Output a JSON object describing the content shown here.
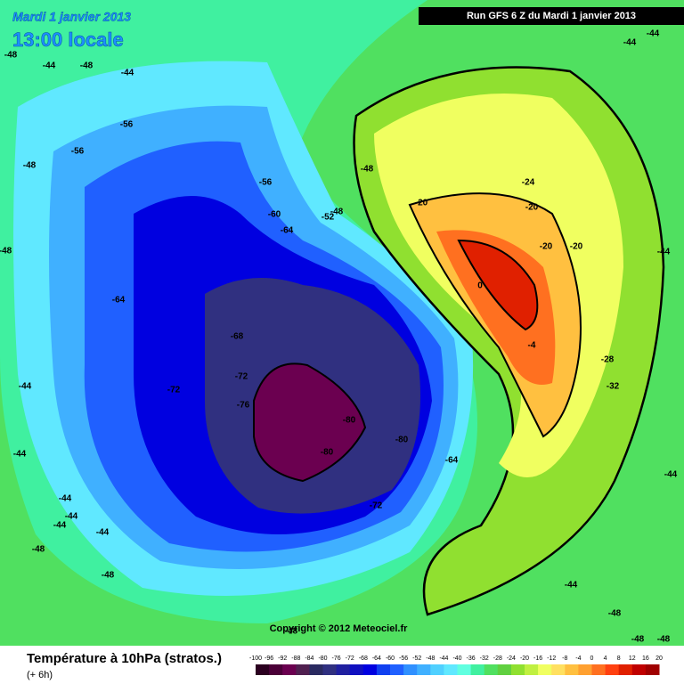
{
  "header": {
    "date": "Mardi 1 janvier 2013",
    "time": "13:00 locale",
    "run": "Run GFS 6 Z du Mardi 1 janvier 2013"
  },
  "copyright": "Copyright © 2012 Meteociel.fr",
  "caption": {
    "title": "Température à 10hPa (stratos.)",
    "subtitle": "(+ 6h)"
  },
  "contour_labels": [
    -48,
    -44,
    -48,
    -44,
    -44,
    -44,
    -48,
    -56,
    -56,
    -56,
    -60,
    -64,
    -52,
    -48,
    -48,
    -20,
    -24,
    -20,
    -20,
    -20,
    -64,
    -68,
    -72,
    -72,
    -76,
    -80,
    -80,
    -80,
    -64,
    -72,
    0,
    -4,
    -28,
    -32,
    -48,
    -44,
    -44,
    -44,
    -44,
    -44,
    -44,
    -48,
    -48,
    -48,
    -44,
    -48,
    -48,
    -48,
    -44,
    -44
  ],
  "colorbar": {
    "ticks": [
      -100,
      -96,
      -92,
      -88,
      -84,
      -80,
      -76,
      -72,
      -68,
      -64,
      -60,
      -56,
      -52,
      -48,
      -44,
      -40,
      -36,
      -32,
      -28,
      -24,
      -20,
      -16,
      -12,
      -8,
      -4,
      0,
      4,
      8,
      12,
      16,
      20
    ],
    "colors": [
      "#2b0020",
      "#4b0038",
      "#6b0050",
      "#502050",
      "#2a2a60",
      "#303080",
      "#2020a0",
      "#1010c0",
      "#0000e0",
      "#1040f0",
      "#2060ff",
      "#3090ff",
      "#40b0ff",
      "#50d0ff",
      "#60e8ff",
      "#60ffe0",
      "#40f0a0",
      "#50e060",
      "#60d040",
      "#90e030",
      "#c0f040",
      "#f0ff60",
      "#ffe060",
      "#ffc040",
      "#ffa030",
      "#ff7020",
      "#ff4010",
      "#e02000",
      "#c00000",
      "#a00000"
    ]
  }
}
